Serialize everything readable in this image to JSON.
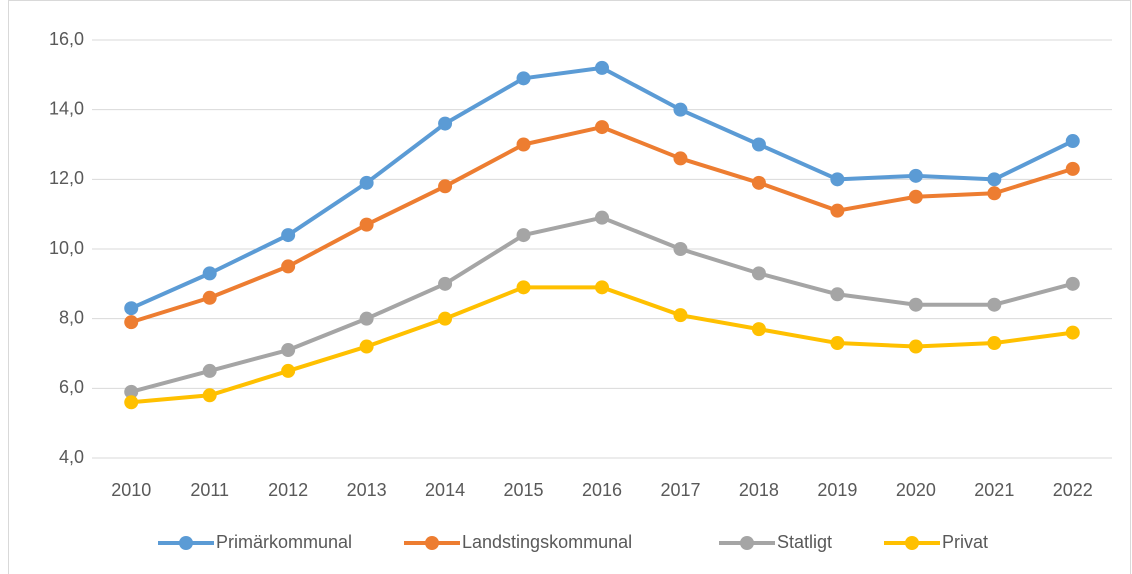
{
  "chart_data": {
    "type": "line",
    "categories": [
      "2010",
      "2011",
      "2012",
      "2013",
      "2014",
      "2015",
      "2016",
      "2017",
      "2018",
      "2019",
      "2020",
      "2021",
      "2022"
    ],
    "series": [
      {
        "name": "Primärkommunal",
        "color": "#5b9bd5",
        "values": [
          8.3,
          9.3,
          10.4,
          11.9,
          13.6,
          14.9,
          15.2,
          14.0,
          13.0,
          12.0,
          12.1,
          12.0,
          13.1
        ]
      },
      {
        "name": "Landstingskommunal",
        "color": "#ed7d31",
        "values": [
          7.9,
          8.6,
          9.5,
          10.7,
          11.8,
          13.0,
          13.5,
          12.6,
          11.9,
          11.1,
          11.5,
          11.6,
          12.3
        ]
      },
      {
        "name": "Statligt",
        "color": "#a5a5a5",
        "values": [
          5.9,
          6.5,
          7.1,
          8.0,
          9.0,
          10.4,
          10.9,
          10.0,
          9.3,
          8.7,
          8.4,
          8.4,
          9.0
        ]
      },
      {
        "name": "Privat",
        "color": "#ffc000",
        "values": [
          5.6,
          5.8,
          6.5,
          7.2,
          8.0,
          8.9,
          8.9,
          8.1,
          7.7,
          7.3,
          7.2,
          7.3,
          7.6
        ]
      }
    ],
    "ylim": [
      4,
      16
    ],
    "yticks": [
      {
        "value": 4,
        "label": "4,0"
      },
      {
        "value": 6,
        "label": "6,0"
      },
      {
        "value": 8,
        "label": "8,0"
      },
      {
        "value": 10,
        "label": "10,0"
      },
      {
        "value": 12,
        "label": "12,0"
      },
      {
        "value": 14,
        "label": "14,0"
      },
      {
        "value": 16,
        "label": "16,0"
      }
    ],
    "grid": true,
    "legend": "bottom"
  }
}
